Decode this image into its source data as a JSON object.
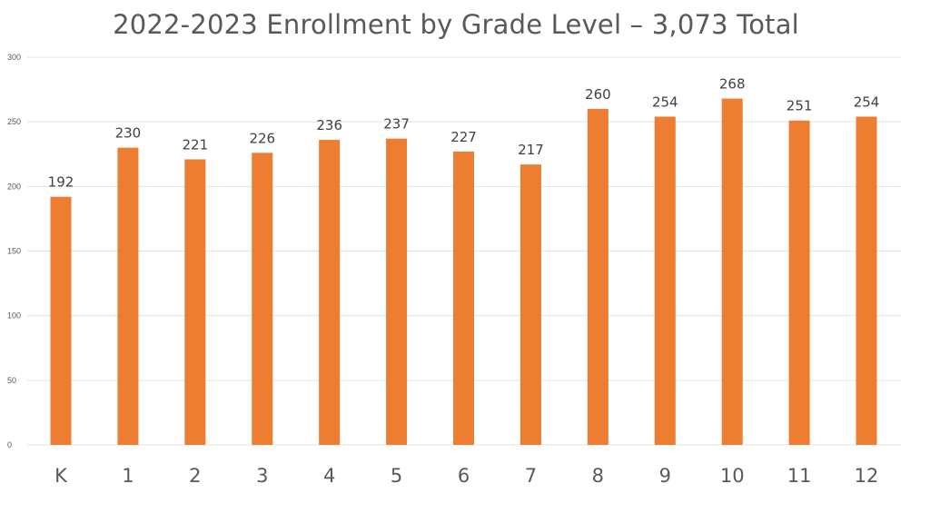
{
  "chart_data": {
    "type": "bar",
    "title": "2022-2023 Enrollment by Grade Level – 3,073 Total",
    "xlabel": "",
    "ylabel": "",
    "categories": [
      "K",
      "1",
      "2",
      "3",
      "4",
      "5",
      "6",
      "7",
      "8",
      "9",
      "10",
      "11",
      "12"
    ],
    "values": [
      192,
      230,
      221,
      226,
      236,
      237,
      227,
      217,
      260,
      254,
      268,
      251,
      254
    ],
    "data_labels": [
      "192",
      "230",
      "221",
      "226",
      "236",
      "237",
      "227",
      "217",
      "260",
      "254",
      "268",
      "251",
      "254"
    ],
    "ylim": [
      0,
      300
    ],
    "yticks": [
      0,
      50,
      100,
      150,
      200,
      250,
      300
    ],
    "ytick_labels": [
      "0",
      "50",
      "100",
      "150",
      "200",
      "250",
      "300"
    ],
    "grid": true,
    "legend": "none",
    "bar_color": "#ED7D31",
    "grid_color": "#E3E3E3"
  }
}
